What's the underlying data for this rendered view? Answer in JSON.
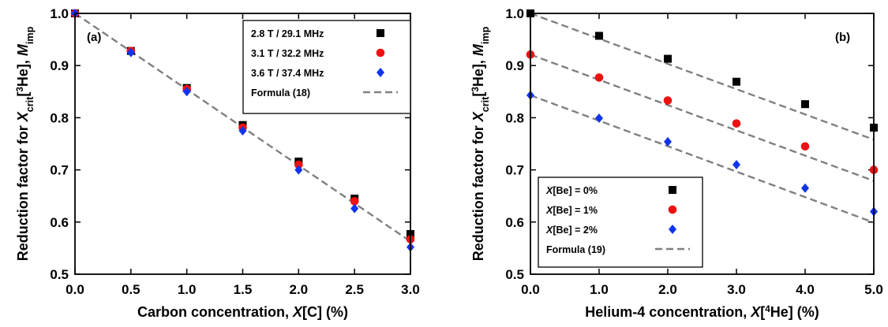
{
  "chart_data": [
    {
      "type": "scatter",
      "panel_label": "(a)",
      "xlabel_parts": [
        "Carbon concentration, ",
        "X",
        "[C] (%)"
      ],
      "ylabel_parts": [
        "Reduction factor for ",
        "X",
        "crit",
        "[",
        "3",
        "He], ",
        "M",
        "imp"
      ],
      "xlim": [
        0,
        3
      ],
      "ylim": [
        0.5,
        1.0
      ],
      "xticks": [
        0,
        0.5,
        1,
        1.5,
        2,
        2.5,
        3
      ],
      "xtick_labels": [
        "0.0",
        "0.5",
        "1.0",
        "1.5",
        "2.0",
        "2.5",
        "3.0"
      ],
      "yticks": [
        0.5,
        0.6,
        0.7,
        0.8,
        0.9,
        1.0
      ],
      "ytick_labels": [
        "0.5",
        "0.6",
        "0.7",
        "0.8",
        "0.9",
        "1.0"
      ],
      "legend_position": "top-right",
      "series": [
        {
          "name": "2.8 T / 29.1 MHz",
          "marker": "square",
          "color": "#000000",
          "x": [
            0,
            0.5,
            1,
            1.5,
            2,
            2.5,
            3
          ],
          "y": [
            1.0,
            0.928,
            0.857,
            0.786,
            0.716,
            0.645,
            0.577
          ]
        },
        {
          "name": "3.1 T / 32.2 MHz",
          "marker": "circle",
          "color": "#ee1111",
          "x": [
            0,
            0.5,
            1,
            1.5,
            2,
            2.5,
            3
          ],
          "y": [
            1.0,
            0.928,
            0.855,
            0.781,
            0.71,
            0.64,
            0.567
          ]
        },
        {
          "name": "3.6 T / 37.4 MHz",
          "marker": "diamond",
          "color": "#1133ee",
          "x": [
            0,
            0.5,
            1,
            1.5,
            2,
            2.5,
            3
          ],
          "y": [
            1.0,
            0.925,
            0.85,
            0.775,
            0.7,
            0.626,
            0.552
          ]
        }
      ],
      "fit_lines": [
        {
          "name": "Formula (18)",
          "color": "#808080",
          "x": [
            0,
            3
          ],
          "y": [
            1.0,
            0.563
          ]
        }
      ]
    },
    {
      "type": "scatter",
      "panel_label": "(b)",
      "xlabel_parts": [
        "Helium-4 concentration, ",
        "X",
        "[",
        "4",
        "He] (%)"
      ],
      "ylabel_parts": [
        "Reduction factor for ",
        "X",
        "crit",
        "[",
        "3",
        "He], ",
        "M",
        "imp"
      ],
      "xlim": [
        0,
        5
      ],
      "ylim": [
        0.5,
        1.0
      ],
      "xticks": [
        0,
        1,
        2,
        3,
        4,
        5
      ],
      "xtick_labels": [
        "0.0",
        "1.0",
        "2.0",
        "3.0",
        "4.0",
        "5.0"
      ],
      "yticks": [
        0.5,
        0.6,
        0.7,
        0.8,
        0.9,
        1.0
      ],
      "ytick_labels": [
        "0.5",
        "0.6",
        "0.7",
        "0.8",
        "0.9",
        "1.0"
      ],
      "legend_position": "bottom-left",
      "series": [
        {
          "name": "X[Be] = 0%",
          "name_parts": [
            "X",
            "[Be] = 0%"
          ],
          "marker": "square",
          "color": "#000000",
          "x": [
            0,
            1,
            2,
            3,
            4,
            5
          ],
          "y": [
            1.0,
            0.957,
            0.913,
            0.869,
            0.826,
            0.781
          ]
        },
        {
          "name": "X[Be] = 1%",
          "name_parts": [
            "X",
            "[Be] = 1%"
          ],
          "marker": "circle",
          "color": "#ee1111",
          "x": [
            0,
            1,
            2,
            3,
            4,
            5
          ],
          "y": [
            0.921,
            0.877,
            0.833,
            0.789,
            0.745,
            0.7
          ]
        },
        {
          "name": "X[Be] = 2%",
          "name_parts": [
            "X",
            "[Be] = 2%"
          ],
          "marker": "diamond",
          "color": "#1133ee",
          "x": [
            0,
            1,
            2,
            3,
            4,
            5
          ],
          "y": [
            0.843,
            0.799,
            0.754,
            0.71,
            0.665,
            0.62
          ]
        }
      ],
      "fit_lines": [
        {
          "name": "Formula (19)",
          "color": "#808080",
          "x": [
            0,
            5
          ],
          "y": [
            1.0,
            0.758
          ]
        },
        {
          "color": "#808080",
          "x": [
            0,
            5
          ],
          "y": [
            0.921,
            0.679
          ]
        },
        {
          "color": "#808080",
          "x": [
            0,
            5
          ],
          "y": [
            0.843,
            0.599
          ]
        }
      ]
    }
  ]
}
